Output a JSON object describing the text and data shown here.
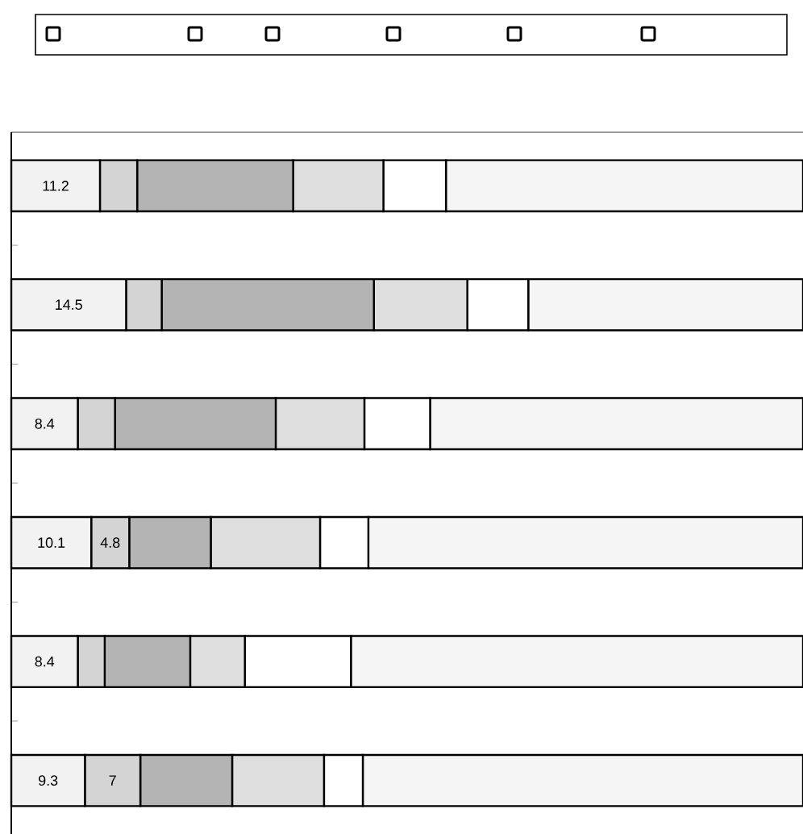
{
  "chart_data": {
    "type": "bar",
    "orientation": "horizontal",
    "stacked": true,
    "categories": [
      null,
      null,
      null,
      null,
      null,
      null
    ],
    "series": [
      {
        "color": "#f2f2f2",
        "values": [
          11.2,
          14.5,
          8.4,
          10.1,
          8.4,
          9.3
        ],
        "value_labels": [
          "11.2",
          "14.5",
          "8.4",
          "10.1",
          "8.4",
          "9.3"
        ]
      },
      {
        "color": "#d4d4d4",
        "values": [
          4.7,
          4.5,
          4.7,
          4.8,
          3.4,
          7
        ],
        "value_labels": [
          null,
          null,
          null,
          "4.8",
          null,
          "7"
        ]
      },
      {
        "color": "#b4b4b4",
        "values": [
          19.7,
          26.8,
          20.3,
          10.3,
          10.8,
          11.6
        ]
      },
      {
        "color": "#dedede",
        "values": [
          11.4,
          11.8,
          11.2,
          13.8,
          6.9,
          11.6
        ]
      },
      {
        "color": "#ffffff",
        "values": [
          7.9,
          7.7,
          8.3,
          6.1,
          13.4,
          4.9
        ]
      },
      {
        "color": "#f5f5f5",
        "values": [
          45.1,
          34.7,
          47.1,
          54.9,
          57.1,
          55.6
        ]
      }
    ]
  }
}
